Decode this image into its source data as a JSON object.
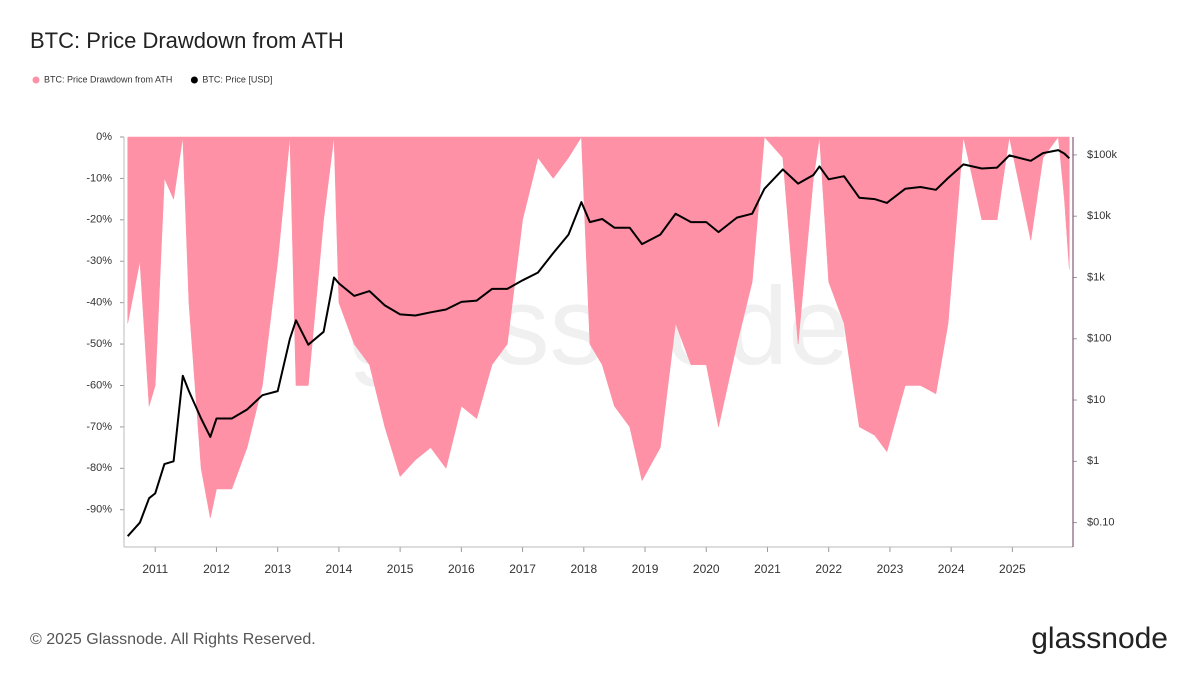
{
  "chart_data": {
    "type": "area-line",
    "title": "BTC: Price Drawdown from ATH",
    "watermark": "glassnode",
    "x": [
      2010.55,
      2010.75,
      2010.9,
      2011.0,
      2011.15,
      2011.3,
      2011.45,
      2011.55,
      2011.75,
      2011.9,
      2012.0,
      2012.25,
      2012.5,
      2012.75,
      2013.0,
      2013.2,
      2013.3,
      2013.5,
      2013.75,
      2013.92,
      2014.0,
      2014.25,
      2014.5,
      2014.75,
      2015.0,
      2015.25,
      2015.5,
      2015.75,
      2016.0,
      2016.25,
      2016.5,
      2016.75,
      2017.0,
      2017.25,
      2017.5,
      2017.75,
      2017.96,
      2018.1,
      2018.3,
      2018.5,
      2018.75,
      2018.95,
      2019.25,
      2019.5,
      2019.75,
      2020.0,
      2020.2,
      2020.5,
      2020.75,
      2020.95,
      2021.25,
      2021.5,
      2021.75,
      2021.85,
      2022.0,
      2022.25,
      2022.5,
      2022.75,
      2022.95,
      2023.25,
      2023.5,
      2023.75,
      2023.95,
      2024.2,
      2024.5,
      2024.75,
      2024.95,
      2025.3,
      2025.5,
      2025.75,
      2025.85,
      2025.93
    ],
    "series": [
      {
        "name": "BTC: Price Drawdown from ATH",
        "color": "#fe91a6",
        "axis": "y",
        "values": [
          -45,
          -30,
          -65,
          -60,
          -10,
          -15,
          0,
          -40,
          -80,
          -92,
          -85,
          -85,
          -75,
          -60,
          -30,
          0,
          -60,
          -60,
          -20,
          0,
          -40,
          -50,
          -55,
          -70,
          -82,
          -78,
          -75,
          -80,
          -65,
          -68,
          -55,
          -50,
          -20,
          -5,
          -10,
          -5,
          0,
          -50,
          -55,
          -65,
          -70,
          -83,
          -75,
          -45,
          -55,
          -55,
          -70,
          -50,
          -35,
          0,
          -5,
          -50,
          -10,
          0,
          -35,
          -45,
          -70,
          -72,
          -76,
          -60,
          -60,
          -62,
          -45,
          0,
          -20,
          -20,
          0,
          -25,
          -5,
          0,
          -15,
          -32
        ]
      },
      {
        "name": "BTC: Price [USD]",
        "color": "#000000",
        "axis": "y2",
        "values": [
          0.06,
          0.1,
          0.25,
          0.3,
          0.9,
          1,
          25,
          14,
          5,
          2.5,
          5,
          5,
          7,
          12,
          14,
          100,
          200,
          80,
          130,
          1000,
          800,
          500,
          600,
          350,
          250,
          240,
          270,
          300,
          400,
          420,
          650,
          650,
          900,
          1200,
          2500,
          5000,
          17000,
          8000,
          9000,
          6500,
          6500,
          3500,
          5000,
          11000,
          8000,
          8000,
          5500,
          9500,
          11000,
          28000,
          58000,
          34000,
          47000,
          65000,
          40000,
          45000,
          20000,
          19000,
          16500,
          28000,
          30000,
          27000,
          42000,
          70000,
          60000,
          62000,
          98000,
          80000,
          107000,
          120000,
          105000,
          88000
        ]
      }
    ],
    "xlim": [
      2010.49,
      2025.99
    ],
    "xticks": [
      2011,
      2012,
      2013,
      2014,
      2015,
      2016,
      2017,
      2018,
      2019,
      2020,
      2021,
      2022,
      2023,
      2024,
      2025
    ],
    "ylim": [
      -99,
      0
    ],
    "yticks": [
      {
        "value": 0,
        "label": "0%"
      },
      {
        "value": -10,
        "label": "-10%"
      },
      {
        "value": -20,
        "label": "-20%"
      },
      {
        "value": -30,
        "label": "-30%"
      },
      {
        "value": -40,
        "label": "-40%"
      },
      {
        "value": -50,
        "label": "-50%"
      },
      {
        "value": -60,
        "label": "-60%"
      },
      {
        "value": -70,
        "label": "-70%"
      },
      {
        "value": -80,
        "label": "-80%"
      },
      {
        "value": -90,
        "label": "-90%"
      }
    ],
    "y2lim": [
      0.04,
      196000
    ],
    "y2log": true,
    "y2ticks": [
      {
        "value": 0.1,
        "label": "$0.10"
      },
      {
        "value": 1,
        "label": "$1"
      },
      {
        "value": 10,
        "label": "$10"
      },
      {
        "value": 100,
        "label": "$100"
      },
      {
        "value": 1000,
        "label": "$1k"
      },
      {
        "value": 10000,
        "label": "$10k"
      },
      {
        "value": 100000,
        "label": "$100k"
      }
    ]
  },
  "footer": {
    "copyright": "© 2025 Glassnode. All Rights Reserved.",
    "logo": "glassnode"
  }
}
